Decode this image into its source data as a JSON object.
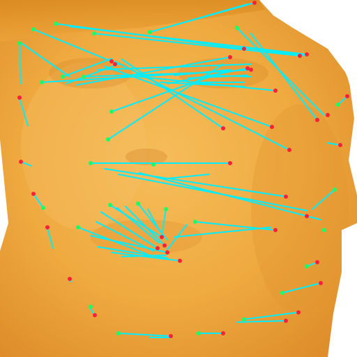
{
  "image": {
    "subject": "face-landmark-correspondence-overlay",
    "colors": {
      "background": "#ffffff",
      "skin_light": "#f4b24a",
      "skin_mid": "#eea43a",
      "skin_dark": "#d88b28",
      "line": "#00f0ff",
      "point_red": "#ff1f3a",
      "point_green": "#19ff66"
    }
  }
}
